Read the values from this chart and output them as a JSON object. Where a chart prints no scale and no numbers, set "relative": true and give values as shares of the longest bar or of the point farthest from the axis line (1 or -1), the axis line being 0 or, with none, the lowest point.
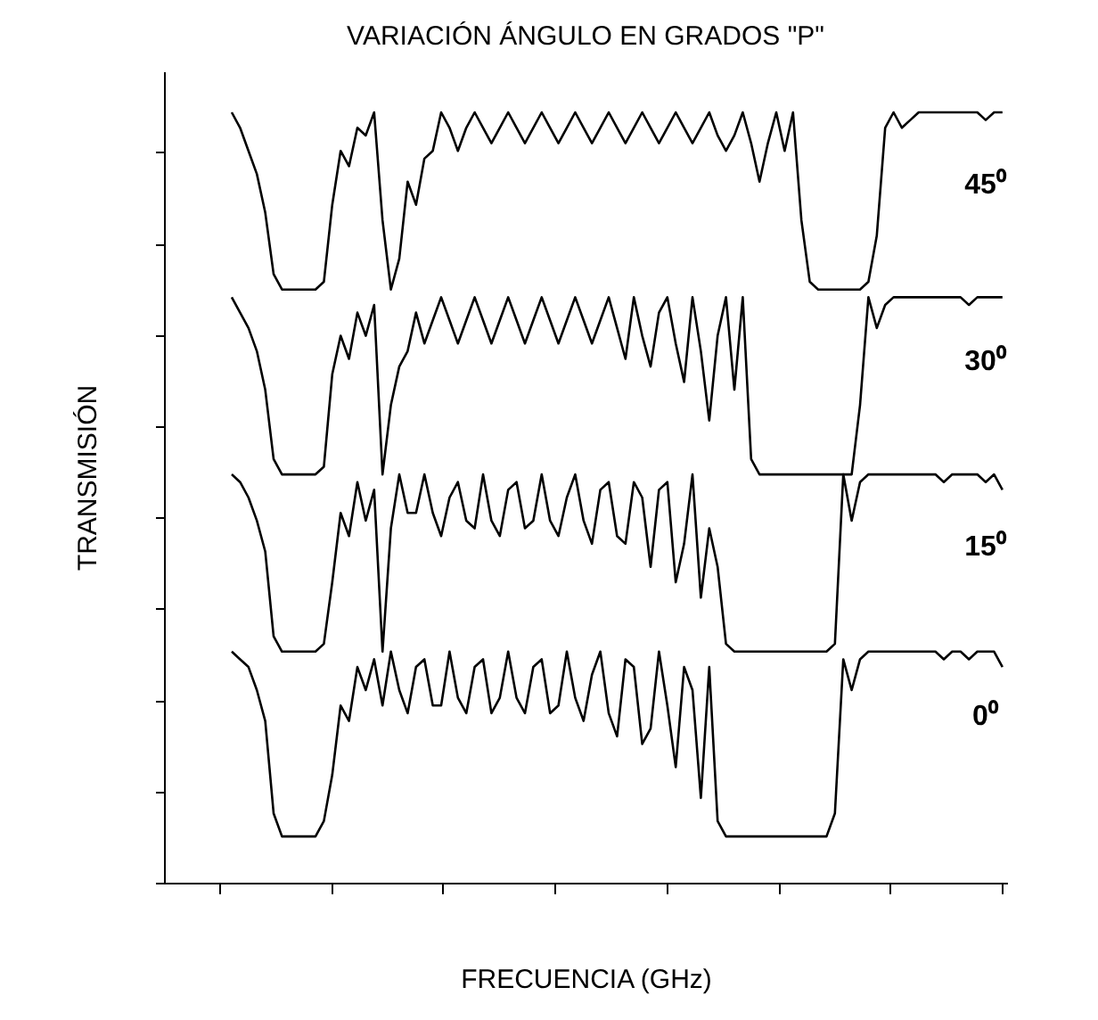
{
  "chart_data": {
    "type": "line",
    "title": "VARIACIÓN ÁNGULO EN GRADOS \"P\"",
    "xlabel": "FRECUENCIA (GHz)",
    "ylabel": "TRANSMISIÓN",
    "relative": true,
    "legend": false,
    "grid": false,
    "marker": "none",
    "line_style": "solid",
    "tick_labels": false,
    "categories": [
      null,
      null,
      null,
      null,
      null,
      null,
      null,
      null,
      null,
      null,
      null,
      null,
      null,
      null,
      null,
      null,
      null,
      null,
      null,
      null,
      null,
      null,
      null,
      null,
      null,
      null,
      null,
      null,
      null,
      null,
      null,
      null,
      null,
      null,
      null,
      null,
      null,
      null,
      null,
      null,
      null,
      null,
      null,
      null,
      null,
      null,
      null,
      null,
      null,
      null,
      null,
      null,
      null,
      null,
      null,
      null,
      null,
      null,
      null,
      null,
      null,
      null,
      null,
      null,
      null,
      null,
      null,
      null,
      null,
      null,
      null,
      null,
      null,
      null,
      null,
      null,
      null,
      null,
      null,
      null,
      null,
      null,
      null,
      null,
      null,
      null,
      null,
      null,
      null,
      null,
      null,
      null,
      null
    ],
    "series": [
      {
        "name": "45⁰",
        "color": "#000000",
        "values": [
          1.0,
          0.98,
          0.95,
          0.92,
          0.87,
          0.79,
          0.77,
          0.77,
          0.77,
          0.77,
          0.77,
          0.78,
          0.88,
          0.95,
          0.93,
          0.98,
          0.97,
          1.0,
          0.86,
          0.77,
          0.81,
          0.91,
          0.88,
          0.94,
          0.95,
          1.0,
          0.98,
          0.95,
          0.98,
          1.0,
          0.98,
          0.96,
          0.98,
          1.0,
          0.98,
          0.96,
          0.98,
          1.0,
          0.98,
          0.96,
          0.98,
          1.0,
          0.98,
          0.96,
          0.98,
          1.0,
          0.98,
          0.96,
          0.98,
          1.0,
          0.98,
          0.96,
          0.98,
          1.0,
          0.98,
          0.96,
          0.98,
          1.0,
          0.97,
          0.95,
          0.97,
          1.0,
          0.96,
          0.91,
          0.96,
          1.0,
          0.95,
          1.0,
          0.86,
          0.78,
          0.77,
          0.77,
          0.77,
          0.77,
          0.77,
          0.77,
          0.78,
          0.84,
          0.98,
          1.0,
          0.98,
          0.99,
          1.0,
          1.0,
          1.0,
          1.0,
          1.0,
          1.0,
          1.0,
          1.0,
          0.99,
          1.0,
          1.0
        ]
      },
      {
        "name": "30⁰",
        "color": "#000000",
        "values": [
          0.76,
          0.74,
          0.72,
          0.69,
          0.64,
          0.55,
          0.53,
          0.53,
          0.53,
          0.53,
          0.53,
          0.54,
          0.66,
          0.71,
          0.68,
          0.74,
          0.71,
          0.75,
          0.53,
          0.62,
          0.67,
          0.69,
          0.74,
          0.7,
          0.73,
          0.76,
          0.73,
          0.7,
          0.73,
          0.76,
          0.73,
          0.7,
          0.73,
          0.76,
          0.73,
          0.7,
          0.73,
          0.76,
          0.73,
          0.7,
          0.73,
          0.76,
          0.73,
          0.7,
          0.73,
          0.76,
          0.72,
          0.68,
          0.76,
          0.71,
          0.67,
          0.74,
          0.76,
          0.7,
          0.65,
          0.76,
          0.69,
          0.6,
          0.71,
          0.76,
          0.64,
          0.76,
          0.55,
          0.53,
          0.53,
          0.53,
          0.53,
          0.53,
          0.53,
          0.53,
          0.53,
          0.53,
          0.53,
          0.53,
          0.53,
          0.62,
          0.76,
          0.72,
          0.75,
          0.76,
          0.76,
          0.76,
          0.76,
          0.76,
          0.76,
          0.76,
          0.76,
          0.76,
          0.75,
          0.76,
          0.76,
          0.76,
          0.76
        ]
      },
      {
        "name": "15⁰",
        "color": "#000000",
        "values": [
          0.53,
          0.52,
          0.5,
          0.47,
          0.43,
          0.32,
          0.3,
          0.3,
          0.3,
          0.3,
          0.3,
          0.31,
          0.39,
          0.48,
          0.45,
          0.52,
          0.47,
          0.51,
          0.3,
          0.46,
          0.53,
          0.48,
          0.48,
          0.53,
          0.48,
          0.45,
          0.5,
          0.52,
          0.47,
          0.46,
          0.53,
          0.47,
          0.45,
          0.51,
          0.52,
          0.46,
          0.47,
          0.53,
          0.47,
          0.45,
          0.5,
          0.53,
          0.47,
          0.44,
          0.51,
          0.52,
          0.45,
          0.44,
          0.52,
          0.5,
          0.41,
          0.51,
          0.52,
          0.39,
          0.44,
          0.53,
          0.37,
          0.46,
          0.41,
          0.31,
          0.3,
          0.3,
          0.3,
          0.3,
          0.3,
          0.3,
          0.3,
          0.3,
          0.3,
          0.3,
          0.3,
          0.3,
          0.31,
          0.53,
          0.47,
          0.52,
          0.53,
          0.53,
          0.53,
          0.53,
          0.53,
          0.53,
          0.53,
          0.53,
          0.53,
          0.52,
          0.53,
          0.53,
          0.53,
          0.53,
          0.52,
          0.53,
          0.51
        ]
      },
      {
        "name": "0⁰",
        "color": "#000000",
        "values": [
          0.3,
          0.29,
          0.28,
          0.25,
          0.21,
          0.09,
          0.06,
          0.06,
          0.06,
          0.06,
          0.06,
          0.08,
          0.14,
          0.23,
          0.21,
          0.28,
          0.25,
          0.29,
          0.23,
          0.3,
          0.25,
          0.22,
          0.28,
          0.29,
          0.23,
          0.23,
          0.3,
          0.24,
          0.22,
          0.28,
          0.29,
          0.22,
          0.24,
          0.3,
          0.24,
          0.22,
          0.28,
          0.29,
          0.22,
          0.23,
          0.3,
          0.24,
          0.21,
          0.27,
          0.3,
          0.22,
          0.19,
          0.29,
          0.28,
          0.18,
          0.2,
          0.3,
          0.23,
          0.15,
          0.28,
          0.25,
          0.11,
          0.28,
          0.08,
          0.06,
          0.06,
          0.06,
          0.06,
          0.06,
          0.06,
          0.06,
          0.06,
          0.06,
          0.06,
          0.06,
          0.06,
          0.06,
          0.09,
          0.29,
          0.25,
          0.29,
          0.3,
          0.3,
          0.3,
          0.3,
          0.3,
          0.3,
          0.3,
          0.3,
          0.3,
          0.29,
          0.3,
          0.3,
          0.29,
          0.3,
          0.3,
          0.3,
          0.28
        ]
      }
    ]
  }
}
